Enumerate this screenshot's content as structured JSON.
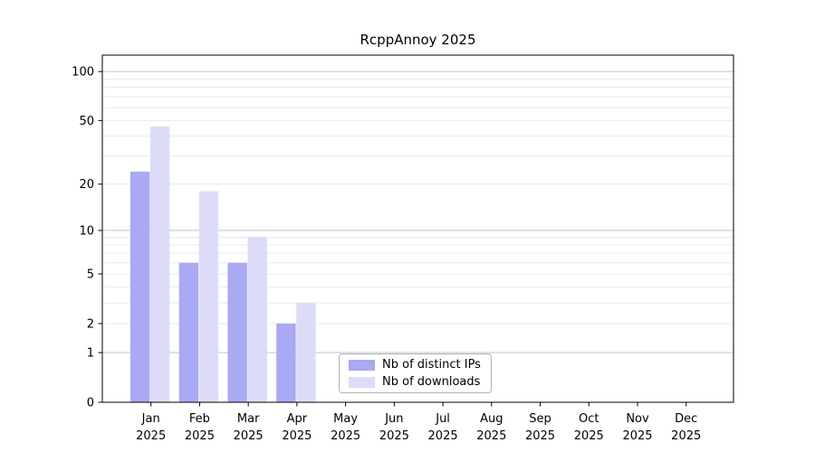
{
  "chart_data": {
    "type": "bar",
    "title": "RcppAnnoy 2025",
    "y_scale": "log1p",
    "ylim": [
      0,
      126
    ],
    "xlabel": "",
    "ylabel": "",
    "grid": "horizontal",
    "categories": [
      "Jan",
      "Feb",
      "Mar",
      "Apr",
      "May",
      "Jun",
      "Jul",
      "Aug",
      "Sep",
      "Oct",
      "Nov",
      "Dec"
    ],
    "category_year": "2025",
    "series": [
      {
        "name": "Nb of distinct IPs",
        "color": "#a9a9f4",
        "values": [
          24,
          6,
          6,
          2,
          null,
          null,
          null,
          null,
          null,
          null,
          null,
          null
        ]
      },
      {
        "name": "Nb of downloads",
        "color": "#dcdcf9",
        "values": [
          46,
          18,
          9,
          3,
          null,
          null,
          null,
          null,
          null,
          null,
          null,
          null
        ]
      }
    ],
    "y_ticks": [
      0,
      1,
      2,
      5,
      10,
      20,
      50,
      100
    ],
    "y_major_gridlines": [
      1,
      10,
      100
    ],
    "y_minor_gridlines": [
      2,
      3,
      4,
      5,
      6,
      7,
      8,
      9,
      20,
      30,
      40,
      50,
      60,
      70,
      80,
      90
    ],
    "legend": {
      "position": "lower-center"
    }
  },
  "styles": {
    "axis_color": "#000000",
    "major_grid_color": "#c3c3c3",
    "minor_grid_color": "#e9e9e9",
    "text_color": "#000000",
    "tick_label_size": 13,
    "title_size": 15
  }
}
